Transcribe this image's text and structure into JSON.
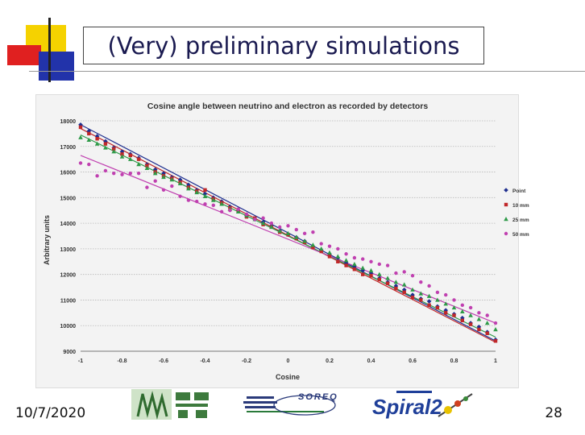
{
  "slide": {
    "title": "(Very) preliminary simulations",
    "date": "10/7/2020",
    "page_number": "28"
  },
  "logos": {
    "soreq": "SOREQ",
    "spiral": "Spiral2"
  },
  "colors": {
    "accent_yellow": "#f5d200",
    "accent_red": "#e02020",
    "accent_blue": "#2233aa",
    "title_text": "#1a1a50"
  },
  "chart_data": {
    "type": "scatter",
    "title": "Cosine angle between neutrino and electron as recorded by detectors",
    "xlabel": "Cosine",
    "ylabel": "Arbitrary units",
    "xlim": [
      -1,
      1
    ],
    "ylim": [
      9000,
      18000
    ],
    "x_ticks": [
      -1,
      -0.8,
      -0.6,
      -0.4,
      -0.2,
      0,
      0.2,
      0.4,
      0.6,
      0.8,
      1
    ],
    "x_tick_labels": [
      "-1",
      "-0.8",
      "-0.6",
      "-0.4",
      "-0.2",
      "0",
      "0.2",
      "0.4",
      "0.6",
      "0.8",
      "1"
    ],
    "y_ticks": [
      9000,
      10000,
      11000,
      12000,
      13000,
      14000,
      15000,
      16000,
      17000,
      18000
    ],
    "y_tick_labels": [
      "9000",
      "10000",
      "11000",
      "12000",
      "13000",
      "14000",
      "15000",
      "16000",
      "17000",
      "18000"
    ],
    "grid": "horizontal",
    "legend_position": "right",
    "series": [
      {
        "name": "Point",
        "color": "#1f2f8f",
        "marker": "diamond",
        "trend": [
          [
            -1,
            17850
          ],
          [
            1,
            9400
          ]
        ],
        "x": [
          -1,
          -0.96,
          -0.92,
          -0.88,
          -0.84,
          -0.8,
          -0.76,
          -0.72,
          -0.68,
          -0.64,
          -0.6,
          -0.56,
          -0.52,
          -0.48,
          -0.44,
          -0.4,
          -0.36,
          -0.32,
          -0.28,
          -0.24,
          -0.2,
          -0.16,
          -0.12,
          -0.08,
          -0.04,
          0,
          0.04,
          0.08,
          0.12,
          0.16,
          0.2,
          0.24,
          0.28,
          0.32,
          0.36,
          0.4,
          0.44,
          0.48,
          0.52,
          0.56,
          0.6,
          0.64,
          0.68,
          0.72,
          0.76,
          0.8,
          0.84,
          0.88,
          0.92,
          0.96,
          1
        ],
        "y": [
          17850,
          17600,
          17400,
          17200,
          16950,
          16800,
          16700,
          16550,
          16300,
          16100,
          15950,
          15800,
          15700,
          15500,
          15300,
          15150,
          15000,
          14850,
          14650,
          14500,
          14300,
          14150,
          14050,
          13900,
          13700,
          13550,
          13450,
          13300,
          13100,
          12950,
          12800,
          12650,
          12450,
          12300,
          12150,
          12050,
          11850,
          11700,
          11550,
          11400,
          11200,
          11050,
          10950,
          10750,
          10600,
          10450,
          10300,
          10100,
          9950,
          9750,
          9450
        ]
      },
      {
        "name": "10 mm",
        "color": "#c0282a",
        "marker": "square",
        "trend": [
          [
            -1,
            17700
          ],
          [
            1,
            9350
          ]
        ],
        "x": [
          -1,
          -0.96,
          -0.92,
          -0.88,
          -0.84,
          -0.8,
          -0.76,
          -0.72,
          -0.68,
          -0.64,
          -0.6,
          -0.56,
          -0.52,
          -0.48,
          -0.44,
          -0.4,
          -0.36,
          -0.32,
          -0.28,
          -0.24,
          -0.2,
          -0.16,
          -0.12,
          -0.08,
          -0.04,
          0,
          0.04,
          0.08,
          0.12,
          0.16,
          0.2,
          0.24,
          0.28,
          0.32,
          0.36,
          0.4,
          0.44,
          0.48,
          0.52,
          0.56,
          0.6,
          0.64,
          0.68,
          0.72,
          0.76,
          0.8,
          0.84,
          0.88,
          0.92,
          0.96,
          1
        ],
        "y": [
          17750,
          17500,
          17300,
          17100,
          16900,
          16700,
          16650,
          16500,
          16250,
          16000,
          15850,
          15750,
          15600,
          15400,
          15250,
          15300,
          14950,
          14800,
          14600,
          14450,
          14250,
          14200,
          13950,
          13850,
          13650,
          13550,
          13400,
          13250,
          13050,
          12900,
          12700,
          12500,
          12350,
          12200,
          12000,
          11950,
          11800,
          11650,
          11450,
          11300,
          11100,
          11000,
          10800,
          10700,
          10500,
          10400,
          10200,
          10050,
          9850,
          9700,
          9400
        ]
      },
      {
        "name": "25 mm",
        "color": "#2e9a48",
        "marker": "triangle",
        "trend": [
          [
            -1,
            17450
          ],
          [
            1,
            9550
          ]
        ],
        "x": [
          -1,
          -0.96,
          -0.92,
          -0.88,
          -0.84,
          -0.8,
          -0.76,
          -0.72,
          -0.68,
          -0.64,
          -0.6,
          -0.56,
          -0.52,
          -0.48,
          -0.44,
          -0.4,
          -0.36,
          -0.32,
          -0.28,
          -0.24,
          -0.2,
          -0.16,
          -0.12,
          -0.08,
          -0.04,
          0,
          0.04,
          0.08,
          0.12,
          0.16,
          0.2,
          0.24,
          0.28,
          0.32,
          0.36,
          0.4,
          0.44,
          0.48,
          0.52,
          0.56,
          0.6,
          0.64,
          0.68,
          0.72,
          0.76,
          0.8,
          0.84,
          0.88,
          0.92,
          0.96,
          1
        ],
        "y": [
          17350,
          17250,
          17100,
          16950,
          16800,
          16600,
          16500,
          16300,
          16150,
          15950,
          15800,
          15700,
          15550,
          15350,
          15200,
          15050,
          14900,
          14750,
          14550,
          14450,
          14300,
          14150,
          14000,
          13850,
          13700,
          13600,
          13450,
          13300,
          13150,
          13000,
          12850,
          12700,
          12550,
          12400,
          12250,
          12150,
          12000,
          11850,
          11700,
          11600,
          11400,
          11250,
          11150,
          11000,
          10850,
          10700,
          10550,
          10400,
          10250,
          10100,
          9850
        ]
      },
      {
        "name": "50 mm",
        "color": "#c040b0",
        "marker": "circle",
        "trend": [
          [
            -1,
            16650
          ],
          [
            1,
            10100
          ]
        ],
        "x": [
          -1,
          -0.96,
          -0.92,
          -0.88,
          -0.84,
          -0.8,
          -0.76,
          -0.72,
          -0.68,
          -0.64,
          -0.6,
          -0.56,
          -0.52,
          -0.48,
          -0.44,
          -0.4,
          -0.36,
          -0.32,
          -0.28,
          -0.24,
          -0.2,
          -0.16,
          -0.12,
          -0.08,
          -0.04,
          0,
          0.04,
          0.08,
          0.12,
          0.16,
          0.2,
          0.24,
          0.28,
          0.32,
          0.36,
          0.4,
          0.44,
          0.48,
          0.52,
          0.56,
          0.6,
          0.64,
          0.68,
          0.72,
          0.76,
          0.8,
          0.84,
          0.88,
          0.92,
          0.96,
          1
        ],
        "y": [
          16350,
          16300,
          15850,
          16050,
          15950,
          15900,
          15950,
          15950,
          15400,
          15650,
          15300,
          15450,
          15050,
          14900,
          14850,
          14750,
          14700,
          14450,
          14500,
          14550,
          14350,
          14150,
          14200,
          14000,
          13850,
          13900,
          13750,
          13600,
          13650,
          13200,
          13100,
          13000,
          12800,
          12650,
          12600,
          12500,
          12400,
          12350,
          12050,
          12100,
          11950,
          11700,
          11550,
          11300,
          11200,
          11000,
          10800,
          10700,
          10500,
          10400,
          10100
        ]
      }
    ]
  }
}
